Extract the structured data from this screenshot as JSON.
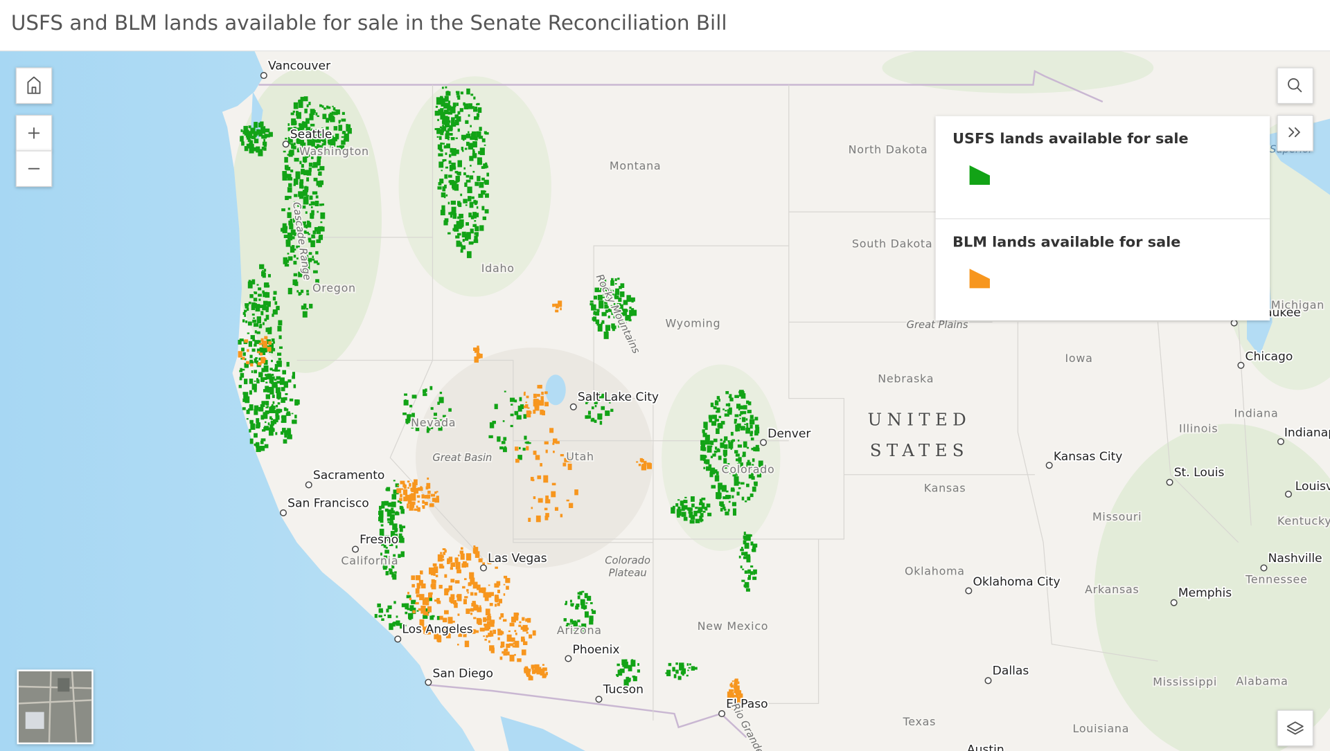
{
  "header": {
    "title": "USFS and BLM lands available for sale in the Senate Reconciliation Bill"
  },
  "legend": {
    "items": [
      {
        "label": "USFS lands available for sale",
        "color": "#12a316"
      },
      {
        "label": "BLM lands available for sale",
        "color": "#f7961e"
      }
    ]
  },
  "map": {
    "country": [
      "UNITED",
      "STATES"
    ],
    "cities": [
      "Vancouver",
      "Seattle",
      "Salt Lake City",
      "Denver",
      "Sacramento",
      "San Francisco",
      "Fresno",
      "Las Vegas",
      "Los Angeles",
      "Phoenix",
      "San Diego",
      "Tucson",
      "El Paso",
      "Kansas City",
      "Oklahoma City",
      "Dallas",
      "Chicago",
      "St. Louis",
      "Memphis",
      "Nashville",
      "Indianapolis",
      "Louisville",
      "Milwaukee",
      "Austin"
    ],
    "regions": [
      "Washington",
      "Oregon",
      "California",
      "Nevada",
      "Utah",
      "Arizona",
      "New Mexico",
      "Colorado",
      "Wyoming",
      "Montana",
      "Idaho",
      "North Dakota",
      "South Dakota",
      "Nebraska",
      "Kansas",
      "Oklahoma",
      "Texas",
      "Iowa",
      "Missouri",
      "Arkansas",
      "Illinois",
      "Indiana",
      "Kentucky",
      "Tennessee",
      "Mississippi",
      "Alabama",
      "Louisiana",
      "Michigan"
    ],
    "features": [
      "Great Plains",
      "Great Basin",
      [
        "Colorado",
        "Plateau"
      ],
      "Rocky Mountains",
      "Cascade Range",
      "Rio Grande"
    ],
    "water": [
      "Superior"
    ]
  }
}
